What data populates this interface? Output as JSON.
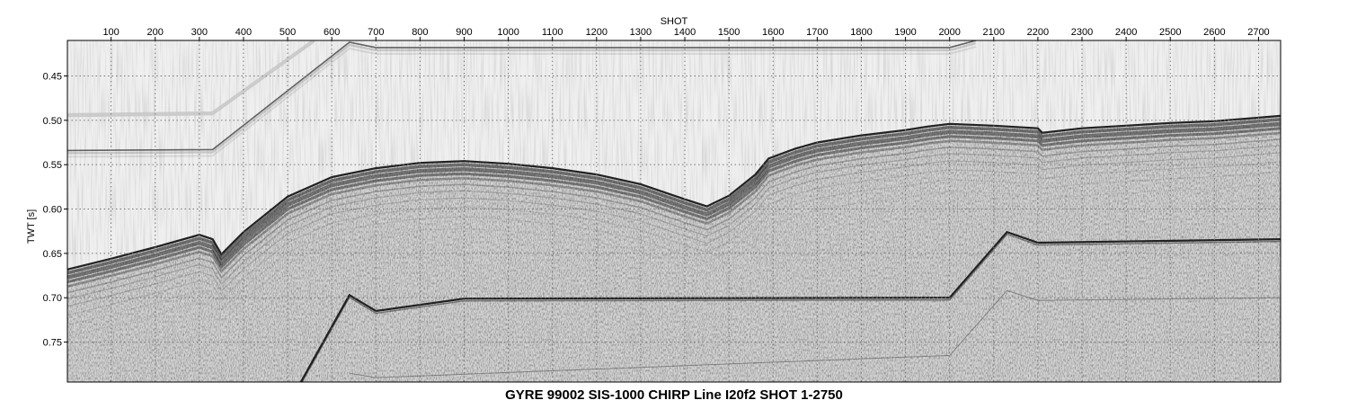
{
  "chart_data": {
    "type": "heatmap",
    "title": "GYRE 99002 SIS-1000 CHIRP Line I20f2 SHOT 1-2750",
    "xlabel": "SHOT",
    "ylabel": "TWT [s]",
    "xlim": [
      1,
      2750
    ],
    "ylim": [
      0.41,
      0.795
    ],
    "y_inverted": true,
    "grid": true,
    "x_ticks": [
      100,
      200,
      300,
      400,
      500,
      600,
      700,
      800,
      900,
      1000,
      1100,
      1200,
      1300,
      1400,
      1500,
      1600,
      1700,
      1800,
      1900,
      2000,
      2100,
      2200,
      2300,
      2400,
      2500,
      2600,
      2700
    ],
    "y_ticks": [
      0.45,
      0.5,
      0.55,
      0.6,
      0.65,
      0.7,
      0.75
    ],
    "y_tick_labels": [
      "0.45",
      "0.50",
      "0.55",
      "0.60",
      "0.65",
      "0.70",
      "0.75"
    ],
    "colormap": "grayscale (white = low amplitude, black = high amplitude)",
    "colors": {
      "background": "#efefef",
      "reflector": "#1a1a1a",
      "grid": "#777777"
    },
    "features": [
      {
        "name": "seafloor",
        "x": [
          1,
          100,
          200,
          300,
          330,
          350,
          400,
          500,
          600,
          700,
          800,
          900,
          1000,
          1100,
          1200,
          1300,
          1400,
          1450,
          1500,
          1560,
          1590,
          1650,
          1700,
          1800,
          1900,
          1950,
          2000,
          2100,
          2200,
          2210,
          2300,
          2400,
          2500,
          2600,
          2700,
          2750
        ],
        "y": [
          0.667,
          0.655,
          0.642,
          0.628,
          0.633,
          0.65,
          0.625,
          0.585,
          0.563,
          0.553,
          0.547,
          0.545,
          0.548,
          0.553,
          0.56,
          0.571,
          0.588,
          0.596,
          0.584,
          0.56,
          0.542,
          0.531,
          0.524,
          0.516,
          0.51,
          0.506,
          0.503,
          0.505,
          0.508,
          0.513,
          0.508,
          0.505,
          0.502,
          0.5,
          0.496,
          0.494
        ]
      },
      {
        "name": "upper-multiple",
        "x": [
          1,
          330,
          640,
          700,
          2000,
          2060
        ],
        "y": [
          0.534,
          0.533,
          0.412,
          0.418,
          0.418,
          0.41
        ]
      },
      {
        "name": "upper-shadow",
        "x": [
          1,
          330,
          560
        ],
        "y": [
          0.494,
          0.492,
          0.41
        ]
      },
      {
        "name": "lower-reflector",
        "x": [
          530,
          640,
          700,
          900,
          2000,
          2130,
          2200,
          2750
        ],
        "y": [
          0.795,
          0.697,
          0.715,
          0.701,
          0.7,
          0.626,
          0.638,
          0.634
        ]
      },
      {
        "name": "lower-multiple",
        "x": [
          640,
          700,
          2000,
          2130,
          2200,
          2750
        ],
        "y": [
          0.785,
          0.79,
          0.765,
          0.692,
          0.703,
          0.7
        ]
      }
    ]
  }
}
